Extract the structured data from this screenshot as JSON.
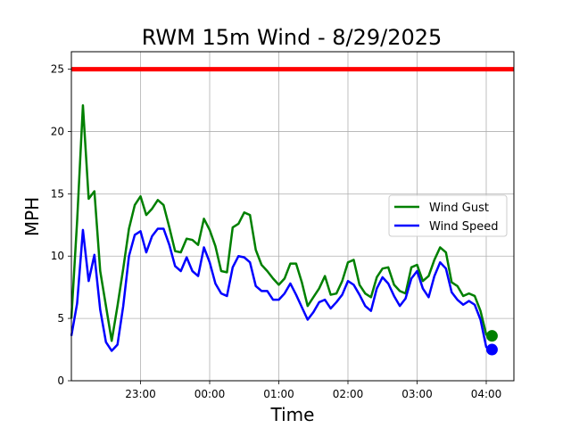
{
  "chart_data": {
    "type": "line",
    "title": "RWM 15m Wind - 8/29/2025",
    "xlabel": "Time",
    "ylabel": "MPH",
    "x_ticks": [
      "23:00",
      "00:00",
      "01:00",
      "02:00",
      "03:00",
      "04:00"
    ],
    "x_tick_hours": [
      23,
      24,
      25,
      26,
      27,
      28
    ],
    "xlim": [
      22.0,
      28.4
    ],
    "ylim": [
      0,
      26.4
    ],
    "y_ticks": [
      0,
      5,
      10,
      15,
      20,
      25
    ],
    "grid": true,
    "legend_position": "center-right",
    "threshold": {
      "value": 25,
      "color": "#ff0000"
    },
    "series": [
      {
        "name": "Wind Gust",
        "color": "#008000",
        "x": [
          22.0,
          22.083,
          22.167,
          22.25,
          22.333,
          22.417,
          22.5,
          22.583,
          22.667,
          22.75,
          22.833,
          22.917,
          23.0,
          23.083,
          23.167,
          23.25,
          23.333,
          23.417,
          23.5,
          23.583,
          23.667,
          23.75,
          23.833,
          23.917,
          24.0,
          24.083,
          24.167,
          24.25,
          24.333,
          24.417,
          24.5,
          24.583,
          24.667,
          24.75,
          24.833,
          24.917,
          25.0,
          25.083,
          25.167,
          25.25,
          25.333,
          25.417,
          25.5,
          25.583,
          25.667,
          25.75,
          25.833,
          25.917,
          26.0,
          26.083,
          26.167,
          26.25,
          26.333,
          26.417,
          26.5,
          26.583,
          26.667,
          26.75,
          26.833,
          26.917,
          27.0,
          27.083,
          27.167,
          27.25,
          27.333,
          27.417,
          27.5,
          27.583,
          27.667,
          27.75,
          27.833,
          27.917,
          28.0,
          28.083
        ],
        "values": [
          5.0,
          12.8,
          22.1,
          14.6,
          15.2,
          8.8,
          6.0,
          3.2,
          6.0,
          9.0,
          12.2,
          14.1,
          14.8,
          13.3,
          13.8,
          14.5,
          14.1,
          12.3,
          10.4,
          10.3,
          11.4,
          11.3,
          10.9,
          13.0,
          12.1,
          10.8,
          8.8,
          8.7,
          12.3,
          12.6,
          13.5,
          13.3,
          10.5,
          9.3,
          8.8,
          8.2,
          7.7,
          8.2,
          9.4,
          9.4,
          7.9,
          6.0,
          6.7,
          7.4,
          8.4,
          6.9,
          7.0,
          8.0,
          9.5,
          9.7,
          7.7,
          7.0,
          6.7,
          8.3,
          9.0,
          9.1,
          7.7,
          7.2,
          7.0,
          9.1,
          9.3,
          8.0,
          8.4,
          9.7,
          10.7,
          10.3,
          7.9,
          7.6,
          6.8,
          7.0,
          6.8,
          5.6,
          3.7,
          3.6
        ]
      },
      {
        "name": "Wind Speed",
        "color": "#0000ff",
        "x": [
          22.0,
          22.083,
          22.167,
          22.25,
          22.333,
          22.417,
          22.5,
          22.583,
          22.667,
          22.75,
          22.833,
          22.917,
          23.0,
          23.083,
          23.167,
          23.25,
          23.333,
          23.417,
          23.5,
          23.583,
          23.667,
          23.75,
          23.833,
          23.917,
          24.0,
          24.083,
          24.167,
          24.25,
          24.333,
          24.417,
          24.5,
          24.583,
          24.667,
          24.75,
          24.833,
          24.917,
          25.0,
          25.083,
          25.167,
          25.25,
          25.333,
          25.417,
          25.5,
          25.583,
          25.667,
          25.75,
          25.833,
          25.917,
          26.0,
          26.083,
          26.167,
          26.25,
          26.333,
          26.417,
          26.5,
          26.583,
          26.667,
          26.75,
          26.833,
          26.917,
          27.0,
          27.083,
          27.167,
          27.25,
          27.333,
          27.417,
          27.5,
          27.583,
          27.667,
          27.75,
          27.833,
          27.917,
          28.0,
          28.083
        ],
        "values": [
          3.6,
          6.2,
          12.1,
          8.0,
          10.1,
          5.7,
          3.1,
          2.4,
          2.9,
          6.0,
          10.0,
          11.7,
          12.0,
          10.3,
          11.6,
          12.2,
          12.2,
          10.9,
          9.2,
          8.8,
          9.9,
          8.8,
          8.4,
          10.7,
          9.5,
          7.8,
          7.0,
          6.8,
          9.1,
          10.0,
          9.9,
          9.5,
          7.6,
          7.2,
          7.2,
          6.5,
          6.5,
          7.0,
          7.8,
          6.9,
          5.9,
          4.9,
          5.5,
          6.3,
          6.5,
          5.8,
          6.3,
          6.9,
          8.0,
          7.7,
          6.9,
          6.0,
          5.6,
          7.4,
          8.3,
          7.8,
          6.8,
          6.0,
          6.6,
          8.2,
          8.8,
          7.4,
          6.7,
          8.4,
          9.5,
          9.0,
          7.1,
          6.5,
          6.1,
          6.4,
          6.1,
          4.9,
          2.7,
          2.5
        ]
      }
    ],
    "end_markers": [
      {
        "series": "Wind Gust",
        "x": 28.083,
        "value": 3.6,
        "color": "#008000"
      },
      {
        "series": "Wind Speed",
        "x": 28.083,
        "value": 2.5,
        "color": "#0000ff"
      }
    ]
  }
}
